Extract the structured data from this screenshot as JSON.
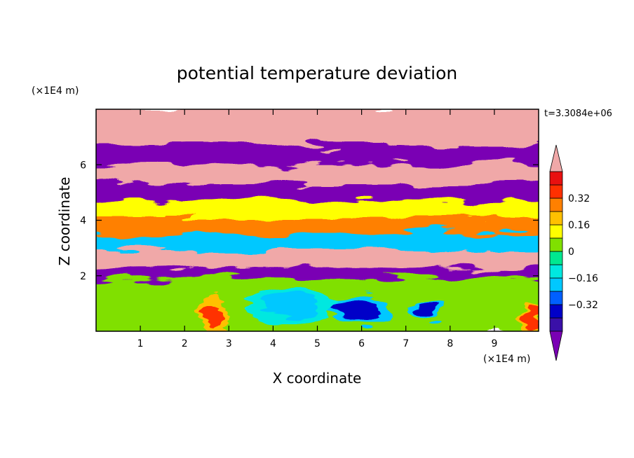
{
  "chart_data": {
    "type": "heatmap",
    "title": "potential temperature deviation",
    "xlabel": "X coordinate",
    "ylabel": "Z coordinate",
    "x_unit": "(×1E4 m)",
    "y_unit": "(×1E4 m)",
    "time_label": "t=3.3084e+06",
    "xlim": [
      0,
      10
    ],
    "ylim": [
      0,
      8
    ],
    "x_ticks": [
      1,
      2,
      3,
      4,
      5,
      6,
      7,
      8,
      9
    ],
    "y_ticks": [
      2,
      4,
      6
    ],
    "colorbar": {
      "levels": [
        -0.48,
        -0.4,
        -0.32,
        -0.24,
        -0.16,
        -0.08,
        0,
        0.08,
        0.16,
        0.24,
        0.32,
        0.4,
        0.48
      ],
      "colors": [
        "#7a00b4",
        "#3a10a8",
        "#0000c8",
        "#0060ff",
        "#00c8ff",
        "#00e8e0",
        "#00e890",
        "#80e000",
        "#ffff00",
        "#ffc000",
        "#ff8000",
        "#ff3000",
        "#e81010",
        "#f0a8a8"
      ],
      "labels": [
        "0.32",
        "0.16",
        "0",
        "−0.16",
        "−0.32"
      ],
      "label_values": [
        0.32,
        0.16,
        0,
        -0.16,
        -0.32
      ]
    },
    "bands": [
      {
        "zmin": 6.6,
        "zmax": 8.0,
        "value": 0.6
      },
      {
        "zmin": 5.9,
        "zmax": 6.6,
        "value": -0.6
      },
      {
        "zmin": 5.2,
        "zmax": 5.9,
        "value": 0.6
      },
      {
        "zmin": 4.6,
        "zmax": 5.2,
        "value": -0.6
      },
      {
        "zmin": 4.0,
        "zmax": 4.6,
        "value": 0.1
      },
      {
        "zmin": 3.4,
        "zmax": 4.0,
        "value": 0.3
      },
      {
        "zmin": 2.8,
        "zmax": 3.4,
        "value": -0.2
      },
      {
        "zmin": 2.2,
        "zmax": 2.8,
        "value": 0.5
      },
      {
        "zmin": 1.8,
        "zmax": 2.2,
        "value": -0.6
      },
      {
        "zmin": 0.0,
        "zmax": 1.8,
        "value": 0.05
      }
    ],
    "eddies": [
      {
        "x": 5.9,
        "z": 0.8,
        "rx": 0.5,
        "rz": 0.35,
        "value": -0.36
      },
      {
        "x": 7.5,
        "z": 0.7,
        "rx": 0.25,
        "rz": 0.2,
        "value": -0.36
      },
      {
        "x": 2.7,
        "z": 0.6,
        "rx": 0.2,
        "rz": 0.5,
        "value": 0.36
      },
      {
        "x": 9.8,
        "z": 0.5,
        "rx": 0.15,
        "rz": 0.4,
        "value": 0.36
      },
      {
        "x": 4.4,
        "z": 1.0,
        "rx": 0.7,
        "rz": 0.45,
        "value": -0.2
      }
    ]
  }
}
